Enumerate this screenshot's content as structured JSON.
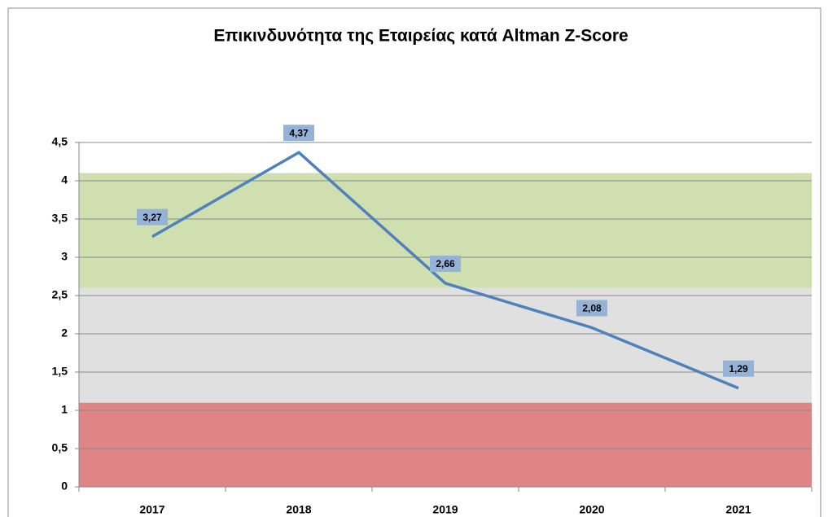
{
  "chart_data": {
    "type": "line",
    "title": "Επικινδυνότητα της Εταιρείας κατά Altman Z-Score",
    "categories": [
      "2017",
      "2018",
      "2019",
      "2020",
      "2021"
    ],
    "series": [
      {
        "color": "#4f81bd",
        "values": [
          3.27,
          4.37,
          2.66,
          2.08,
          1.29
        ],
        "value_labels": [
          "3,27",
          "4,37",
          "2,66",
          "2,08",
          "1,29"
        ]
      }
    ],
    "bands": [
      {
        "from": 0,
        "to": 1.1,
        "color": "#e08585"
      },
      {
        "from": 1.1,
        "to": 2.6,
        "color": "#e0e0e0"
      },
      {
        "from": 2.6,
        "to": 4.1,
        "color": "#cfdfb0"
      }
    ],
    "ylim": [
      0,
      4.5
    ],
    "yticks": [
      0,
      {
        "value": 0.5,
        "label": "0,5"
      },
      1,
      {
        "value": 1.5,
        "label": "1,5"
      },
      2,
      {
        "value": 2.5,
        "label": "2,5"
      },
      3,
      {
        "value": 3.5,
        "label": "3,5"
      },
      4,
      {
        "value": 4.5,
        "label": "4,5"
      }
    ],
    "grid": true
  }
}
